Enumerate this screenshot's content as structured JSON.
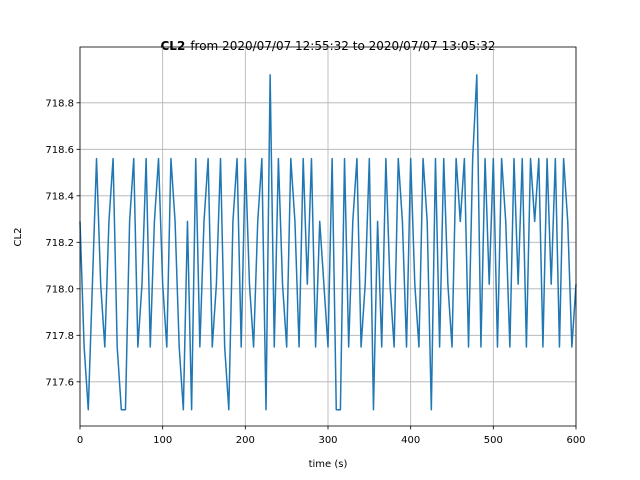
{
  "chart_data": {
    "type": "line",
    "title_name": "CL2",
    "title": "from 2020/07/07 12:55:32 to 2020/07/07 13:05:32",
    "xlabel": "time (s)",
    "ylabel": "CL2",
    "color": "#1f77b4",
    "grid": true,
    "xlim": [
      0,
      600
    ],
    "xticks": [
      0,
      100,
      200,
      300,
      400,
      500,
      600
    ],
    "ylim": [
      717.41,
      719.04
    ],
    "yticks": [
      717.6,
      717.8,
      {
        "value": 718,
        "label": "718.0"
      },
      718.2,
      718.4,
      718.6,
      718.8
    ],
    "x": [
      0,
      5,
      10,
      15,
      20,
      25,
      30,
      35,
      40,
      45,
      50,
      55,
      60,
      65,
      70,
      75,
      80,
      85,
      90,
      95,
      100,
      105,
      110,
      115,
      120,
      125,
      130,
      135,
      140,
      145,
      150,
      155,
      160,
      165,
      170,
      175,
      180,
      185,
      190,
      195,
      200,
      205,
      210,
      215,
      220,
      225,
      230,
      235,
      240,
      245,
      250,
      255,
      260,
      265,
      270,
      275,
      280,
      285,
      290,
      295,
      300,
      305,
      310,
      315,
      320,
      325,
      330,
      335,
      340,
      345,
      350,
      355,
      360,
      365,
      370,
      375,
      380,
      385,
      390,
      395,
      400,
      405,
      410,
      415,
      420,
      425,
      430,
      435,
      440,
      445,
      450,
      455,
      460,
      465,
      470,
      475,
      480,
      485,
      490,
      495,
      500,
      505,
      510,
      515,
      520,
      525,
      530,
      535,
      540,
      545,
      550,
      555,
      560,
      565,
      570,
      575,
      580,
      585,
      590,
      595,
      600
    ],
    "values": [
      718.29,
      717.75,
      717.48,
      718.02,
      718.56,
      718.02,
      717.75,
      718.29,
      718.56,
      717.75,
      717.48,
      717.48,
      718.29,
      718.56,
      717.75,
      718.02,
      718.56,
      717.75,
      718.29,
      718.56,
      718.02,
      717.75,
      718.56,
      718.29,
      717.75,
      717.48,
      718.29,
      717.48,
      718.56,
      717.75,
      718.29,
      718.56,
      717.75,
      718.02,
      718.56,
      717.75,
      717.48,
      718.29,
      718.56,
      717.75,
      718.56,
      718.02,
      717.75,
      718.29,
      718.56,
      717.48,
      718.92,
      717.75,
      718.56,
      718.02,
      717.75,
      718.56,
      718.29,
      717.75,
      718.56,
      718.02,
      718.56,
      717.75,
      718.29,
      718.02,
      717.75,
      718.56,
      717.48,
      717.48,
      718.56,
      717.75,
      718.29,
      718.56,
      717.75,
      718.02,
      718.56,
      717.48,
      718.29,
      717.75,
      718.56,
      718.02,
      717.75,
      718.56,
      718.29,
      717.75,
      718.56,
      718.02,
      717.75,
      718.56,
      718.29,
      717.48,
      718.56,
      717.75,
      718.56,
      718.02,
      717.75,
      718.56,
      718.29,
      718.56,
      717.75,
      718.56,
      718.92,
      717.75,
      718.56,
      718.02,
      718.56,
      717.75,
      718.56,
      718.29,
      717.75,
      718.56,
      718.02,
      718.56,
      717.75,
      718.56,
      718.29,
      718.56,
      717.75,
      718.56,
      718.02,
      718.56,
      717.75,
      718.56,
      718.29,
      717.75,
      718.02
    ]
  }
}
